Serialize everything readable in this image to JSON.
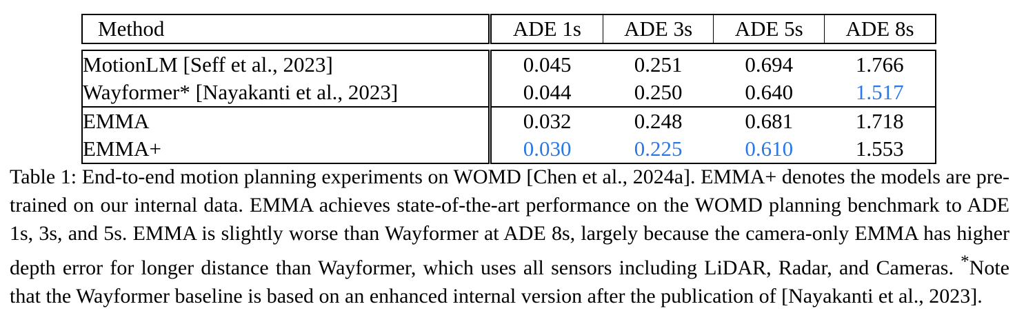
{
  "table": {
    "headers": [
      "Method",
      "ADE 1s",
      "ADE 3s",
      "ADE 5s",
      "ADE 8s"
    ],
    "rows": [
      {
        "method": "MotionLM [Seff et al., 2023]",
        "v1": "0.045",
        "v3": "0.251",
        "v5": "0.694",
        "v8": "1.766"
      },
      {
        "method": "Wayformer* [Nayakanti et al., 2023]",
        "v1": "0.044",
        "v3": "0.250",
        "v5": "0.640",
        "v8": "1.517"
      },
      {
        "method": "EMMA",
        "v1": "0.032",
        "v3": "0.248",
        "v5": "0.681",
        "v8": "1.718"
      },
      {
        "method": "EMMA+",
        "v1": "0.030",
        "v3": "0.225",
        "v5": "0.610",
        "v8": "1.553"
      }
    ],
    "highlight_color": "#2a78e4"
  },
  "caption": {
    "label": "Table 1:",
    "text": "End-to-end motion planning experiments on WOMD [Chen et al., 2024a]. EMMA+ denotes the models are pre-trained on our internal data. EMMA achieves state-of-the-art performance on the WOMD planning benchmark to ADE 1s, 3s, and 5s. EMMA is slightly worse than Wayformer at ADE 8s, largely because the camera-only EMMA has higher depth error for longer distance than Wayformer, which uses all sensors including LiDAR, Radar, and Cameras.",
    "note_mark": "*",
    "note_text": "Note that the Wayformer baseline is based on an enhanced internal version after the publication of  [Nayakanti et al., 2023]."
  }
}
